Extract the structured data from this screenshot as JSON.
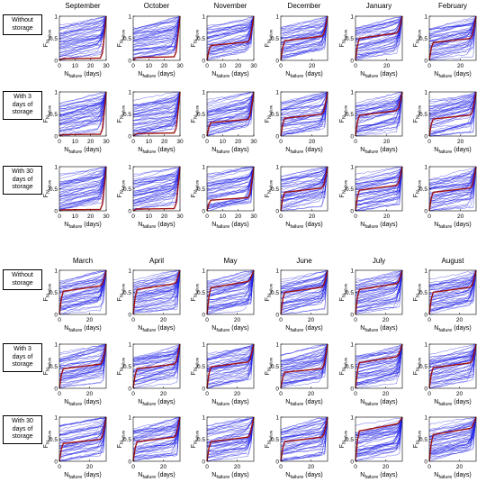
{
  "chart_data": {
    "type": "line",
    "panel_groups": [
      {
        "months": [
          "September",
          "October",
          "November",
          "December",
          "January",
          "February"
        ],
        "x_ticks": [
          [
            "0",
            "10",
            "20",
            "30"
          ],
          [
            "0",
            "10",
            "20",
            "30"
          ],
          [
            "0",
            "10",
            "20",
            "30"
          ],
          [
            "0",
            "20"
          ],
          [
            "0",
            "20"
          ],
          [
            "0",
            "20"
          ]
        ],
        "xlim": [
          0,
          30
        ]
      },
      {
        "months": [
          "March",
          "April",
          "May",
          "June",
          "July",
          "August"
        ],
        "x_ticks": [
          [
            "0",
            "20"
          ],
          [
            "0",
            "20"
          ],
          [
            "0",
            "20"
          ],
          [
            "0",
            "20"
          ],
          [
            "0",
            "20"
          ],
          [
            "0",
            "20"
          ]
        ],
        "xlim": [
          0,
          31
        ]
      }
    ],
    "row_labels": [
      "Without storage",
      "With 3 days of storage",
      "With 30 days of storage"
    ],
    "y_ticks": [
      "0",
      "0.5",
      "1"
    ],
    "ylim": [
      0,
      1
    ],
    "xlabel": {
      "main": "N",
      "sub": "failure",
      "suffix": " (days)"
    },
    "ylabel": {
      "main": "F",
      "sub": "N",
      "subsub": "failure"
    },
    "series": [
      {
        "role": "ensemble",
        "color": "#1f1fe6"
      },
      {
        "role": "highlight",
        "color": "#a01010"
      }
    ],
    "red_curve_levels": [
      [
        0.05,
        0.08,
        0.42,
        0.55,
        0.62,
        0.5,
        0.65,
        0.7,
        0.75,
        0.62,
        0.7,
        0.62
      ],
      [
        0.04,
        0.07,
        0.38,
        0.5,
        0.58,
        0.48,
        0.55,
        0.55,
        0.6,
        0.45,
        0.72,
        0.58
      ],
      [
        0.03,
        0.05,
        0.3,
        0.52,
        0.58,
        0.52,
        0.5,
        0.55,
        0.55,
        0.55,
        0.85,
        0.75
      ]
    ]
  },
  "row_label_lines": [
    [
      "Without",
      "storage"
    ],
    [
      "With 3",
      "days of",
      "storage"
    ],
    [
      "With 30",
      "days of",
      "storage"
    ]
  ]
}
